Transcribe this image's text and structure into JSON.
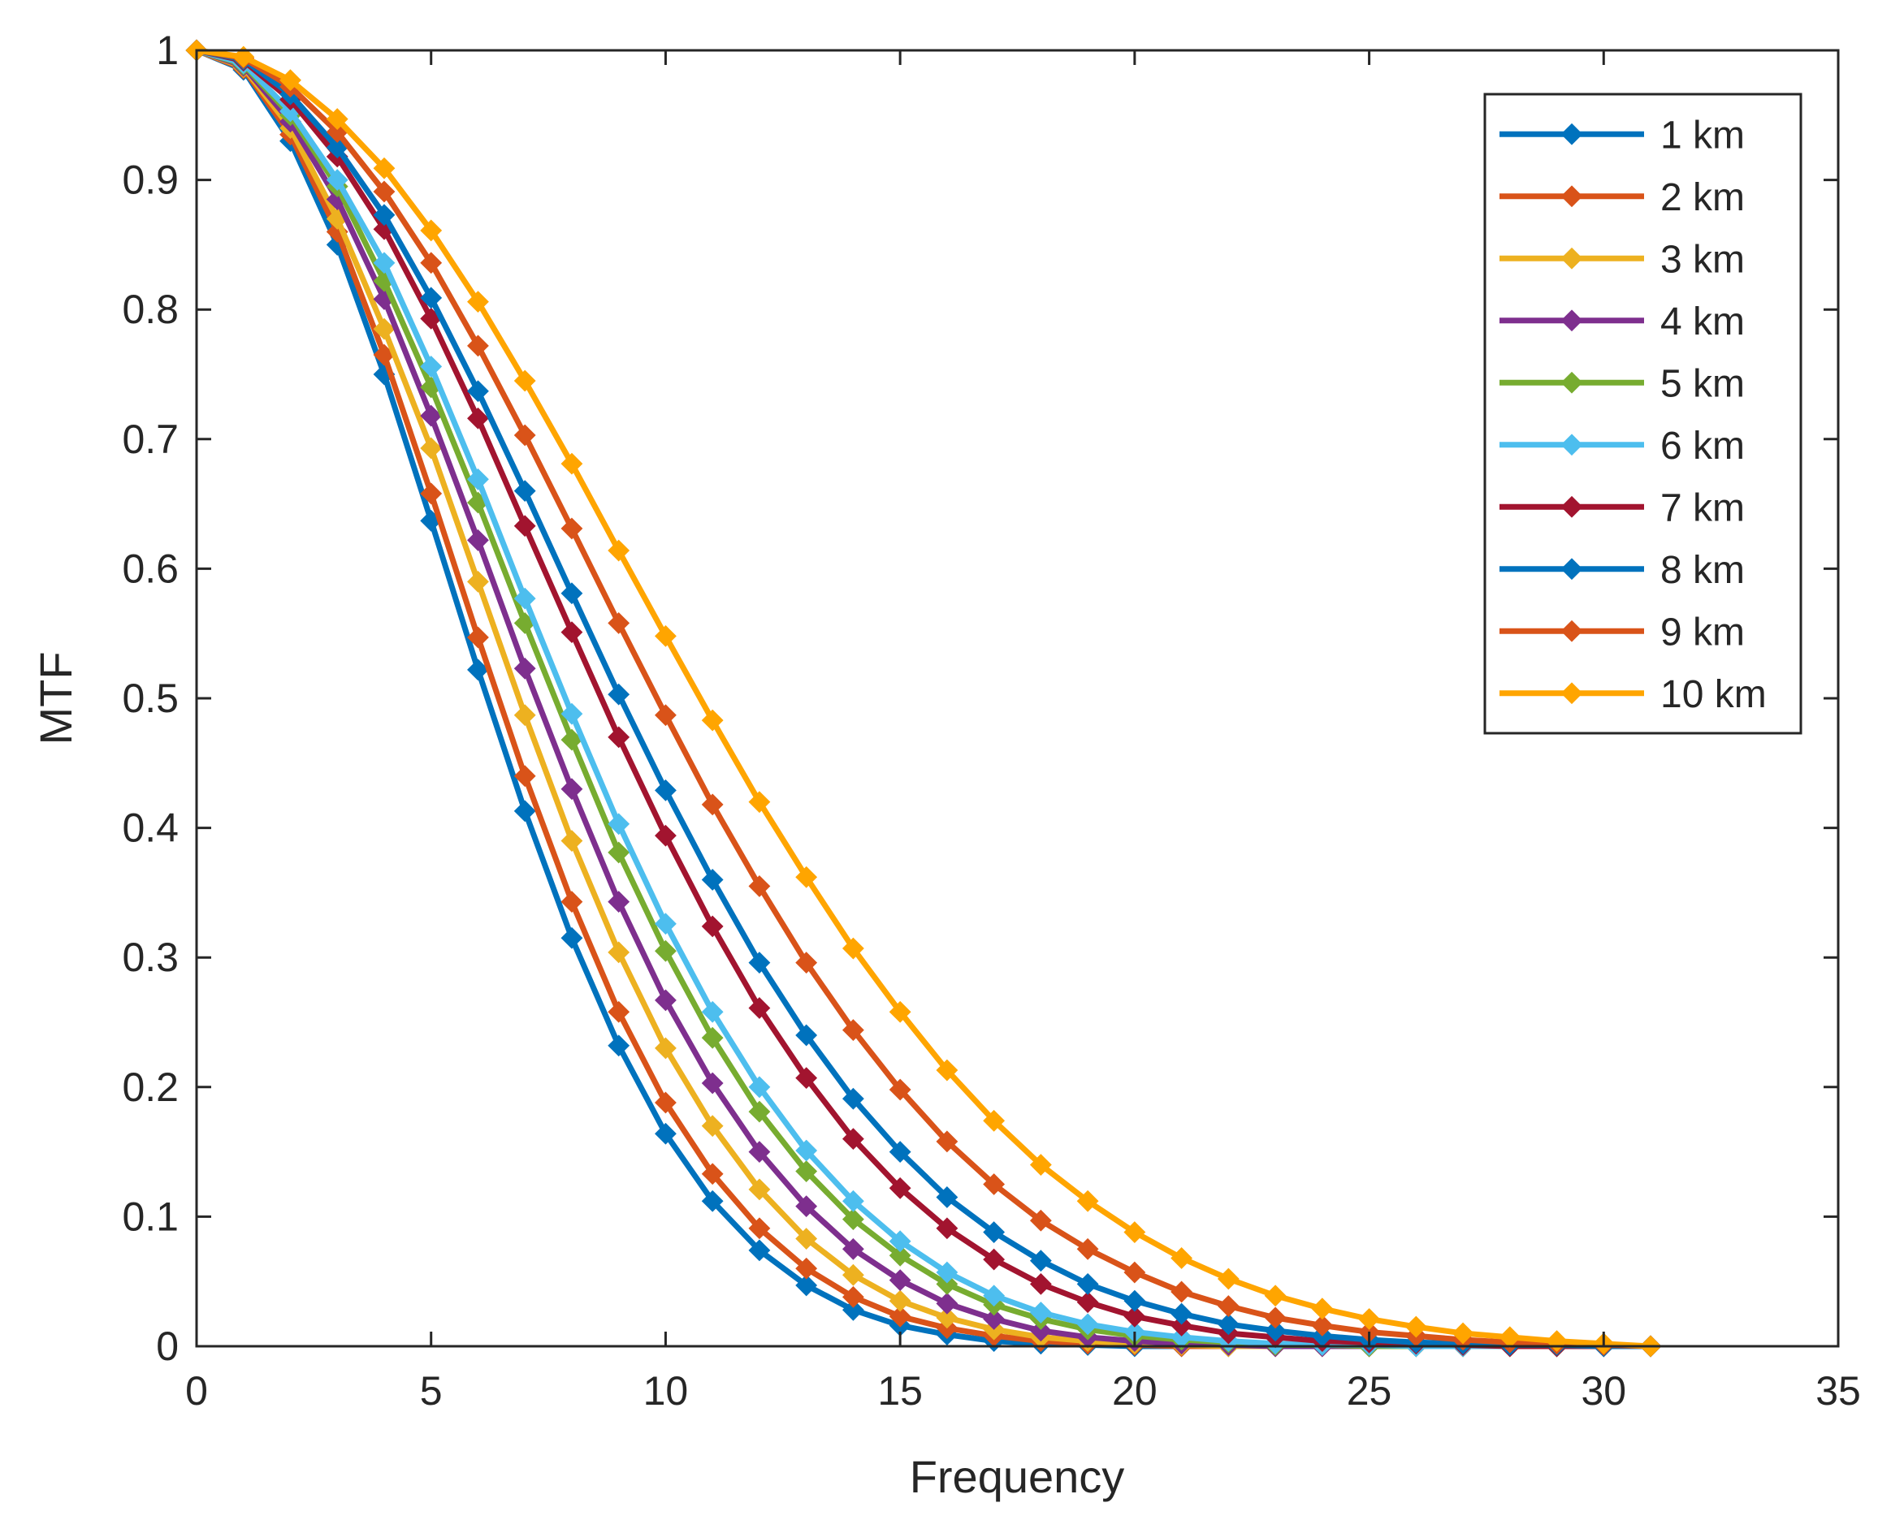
{
  "chart_data": {
    "type": "line",
    "title": "",
    "xlabel": "Frequency",
    "ylabel": "MTF",
    "xlim": [
      0,
      35
    ],
    "ylim": [
      0,
      1
    ],
    "x_ticks": [
      "0",
      "5",
      "10",
      "15",
      "20",
      "25",
      "30",
      "35"
    ],
    "y_ticks": [
      "0",
      "0.1",
      "0.2",
      "0.3",
      "0.4",
      "0.5",
      "0.6",
      "0.7",
      "0.8",
      "0.9",
      "1"
    ],
    "grid": false,
    "legend_position": "top-right",
    "x": [
      0,
      1,
      2,
      3,
      4,
      5,
      6,
      7,
      8,
      9,
      10,
      11,
      12,
      13,
      14,
      15,
      16,
      17,
      18,
      19,
      20,
      21,
      22,
      23,
      24,
      25,
      26,
      27,
      28,
      29,
      30,
      31
    ],
    "series": [
      {
        "name": "1 km",
        "color": "#0072BD",
        "values": [
          1,
          0.985,
          0.93,
          0.85,
          0.75,
          0.637,
          0.522,
          0.413,
          0.315,
          0.232,
          0.164,
          0.112,
          0.074,
          0.047,
          0.028,
          0.016,
          0.009,
          0.004,
          0.002,
          0.001,
          0,
          0,
          0,
          0,
          0,
          0,
          0,
          0,
          0,
          0,
          0,
          0
        ]
      },
      {
        "name": "2 km",
        "color": "#D95319",
        "values": [
          1,
          0.986,
          0.935,
          0.86,
          0.765,
          0.658,
          0.547,
          0.44,
          0.343,
          0.258,
          0.188,
          0.133,
          0.091,
          0.06,
          0.038,
          0.023,
          0.014,
          0.008,
          0.004,
          0.002,
          0.001,
          0,
          0,
          0,
          0,
          0,
          0,
          0,
          0,
          0,
          0,
          0
        ]
      },
      {
        "name": "3 km",
        "color": "#EDB120",
        "values": [
          1,
          0.987,
          0.94,
          0.87,
          0.785,
          0.693,
          0.59,
          0.487,
          0.39,
          0.304,
          0.23,
          0.17,
          0.121,
          0.083,
          0.055,
          0.035,
          0.022,
          0.013,
          0.007,
          0.004,
          0.002,
          0.001,
          0,
          0,
          0,
          0,
          0,
          0,
          0,
          0,
          0,
          0
        ]
      },
      {
        "name": "4 km",
        "color": "#7E2F8E",
        "values": [
          1,
          0.988,
          0.945,
          0.885,
          0.808,
          0.718,
          0.622,
          0.523,
          0.43,
          0.343,
          0.267,
          0.203,
          0.15,
          0.108,
          0.075,
          0.051,
          0.033,
          0.021,
          0.012,
          0.007,
          0.004,
          0.002,
          0.001,
          0,
          0,
          0,
          0,
          0,
          0,
          0,
          0,
          0
        ]
      },
      {
        "name": "5 km",
        "color": "#77AC30",
        "values": [
          1,
          0.989,
          0.95,
          0.895,
          0.822,
          0.74,
          0.651,
          0.558,
          0.468,
          0.381,
          0.305,
          0.238,
          0.181,
          0.135,
          0.098,
          0.07,
          0.048,
          0.032,
          0.021,
          0.013,
          0.008,
          0.005,
          0.003,
          0.001,
          0.001,
          0,
          0,
          0,
          0,
          0,
          0,
          0
        ]
      },
      {
        "name": "6 km",
        "color": "#4DBEEE",
        "values": [
          1,
          0.99,
          0.953,
          0.9,
          0.836,
          0.756,
          0.669,
          0.577,
          0.488,
          0.403,
          0.326,
          0.258,
          0.2,
          0.151,
          0.112,
          0.081,
          0.057,
          0.039,
          0.026,
          0.017,
          0.011,
          0.007,
          0.004,
          0.002,
          0.001,
          0.001,
          0,
          0,
          0,
          0,
          0,
          0
        ]
      },
      {
        "name": "7 km",
        "color": "#A2142F",
        "values": [
          1,
          0.992,
          0.962,
          0.918,
          0.862,
          0.793,
          0.716,
          0.633,
          0.551,
          0.47,
          0.394,
          0.324,
          0.261,
          0.207,
          0.16,
          0.122,
          0.091,
          0.067,
          0.048,
          0.034,
          0.023,
          0.016,
          0.01,
          0.007,
          0.004,
          0.003,
          0.002,
          0.001,
          0,
          0,
          0,
          0
        ]
      },
      {
        "name": "8 km",
        "color": "#0072BD",
        "values": [
          1,
          0.993,
          0.966,
          0.925,
          0.873,
          0.809,
          0.737,
          0.66,
          0.581,
          0.503,
          0.429,
          0.36,
          0.296,
          0.24,
          0.191,
          0.15,
          0.115,
          0.088,
          0.066,
          0.048,
          0.035,
          0.025,
          0.017,
          0.012,
          0.008,
          0.005,
          0.003,
          0.002,
          0.001,
          0.001,
          0,
          0
        ]
      },
      {
        "name": "9 km",
        "color": "#D95319",
        "values": [
          1,
          0.994,
          0.972,
          0.937,
          0.891,
          0.836,
          0.772,
          0.703,
          0.631,
          0.558,
          0.487,
          0.418,
          0.355,
          0.296,
          0.244,
          0.198,
          0.158,
          0.125,
          0.097,
          0.075,
          0.057,
          0.042,
          0.031,
          0.022,
          0.016,
          0.011,
          0.008,
          0.005,
          0.003,
          0.002,
          0.001,
          0
        ]
      },
      {
        "name": "10 km",
        "color": "#FFA500",
        "values": [
          1,
          0.995,
          0.977,
          0.947,
          0.909,
          0.861,
          0.806,
          0.745,
          0.681,
          0.614,
          0.548,
          0.483,
          0.42,
          0.362,
          0.307,
          0.258,
          0.213,
          0.174,
          0.14,
          0.112,
          0.088,
          0.068,
          0.052,
          0.039,
          0.029,
          0.021,
          0.015,
          0.01,
          0.007,
          0.004,
          0.002,
          0
        ]
      }
    ]
  }
}
